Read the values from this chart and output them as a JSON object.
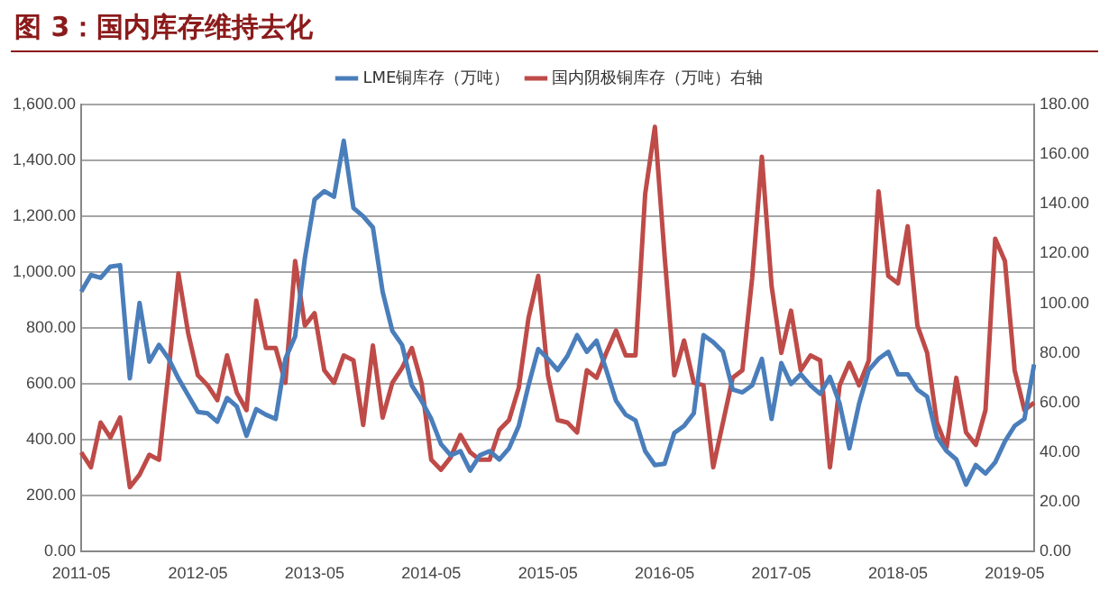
{
  "chart_data": {
    "type": "line",
    "title": "图 3：国内库存维持去化",
    "categories": [
      "2011-05",
      null,
      null,
      null,
      null,
      null,
      null,
      null,
      null,
      null,
      null,
      null,
      "2012-05",
      null,
      null,
      null,
      null,
      null,
      null,
      null,
      null,
      null,
      null,
      null,
      "2013-05",
      null,
      null,
      null,
      null,
      null,
      null,
      null,
      null,
      null,
      null,
      null,
      "2014-05",
      null,
      null,
      null,
      null,
      null,
      null,
      null,
      null,
      null,
      null,
      null,
      "2015-05",
      null,
      null,
      null,
      null,
      null,
      null,
      null,
      null,
      null,
      null,
      null,
      "2016-05",
      null,
      null,
      null,
      null,
      null,
      null,
      null,
      null,
      null,
      null,
      null,
      "2017-05",
      null,
      null,
      null,
      null,
      null,
      null,
      null,
      null,
      null,
      null,
      null,
      "2018-05",
      null,
      null,
      null,
      null,
      null,
      null,
      null,
      null,
      null,
      null,
      null,
      "2019-05",
      null,
      null
    ],
    "series": [
      {
        "name": "LME铜库存（万吨）",
        "color": "#4a7ebb",
        "values": [
          930,
          990,
          980,
          1020,
          1025,
          620,
          890,
          680,
          740,
          690,
          620,
          560,
          500,
          495,
          465,
          550,
          520,
          415,
          510,
          490,
          475,
          690,
          770,
          1050,
          1260,
          1290,
          1270,
          1470,
          1230,
          1200,
          1160,
          930,
          790,
          740,
          595,
          540,
          475,
          385,
          345,
          360,
          290,
          345,
          360,
          330,
          370,
          450,
          595,
          725,
          690,
          650,
          700,
          775,
          715,
          755,
          650,
          540,
          490,
          470,
          360,
          310,
          315,
          425,
          450,
          495,
          775,
          750,
          715,
          580,
          570,
          595,
          690,
          475,
          675,
          600,
          635,
          595,
          565,
          625,
          530,
          370,
          530,
          650,
          690,
          715,
          635,
          635,
          580,
          555,
          410,
          360,
          330,
          240,
          310,
          280,
          320,
          395,
          450,
          475,
          670
        ]
      },
      {
        "name": "国内阴极铜库存（万吨）右轴",
        "color": "#be4b48",
        "axis": "y2",
        "values": [
          40,
          34,
          52,
          46,
          54,
          26,
          31,
          39,
          37,
          73,
          112,
          88,
          71,
          67,
          61,
          79,
          64,
          57,
          101,
          82,
          82,
          68,
          117,
          91,
          96,
          73,
          68,
          79,
          77,
          51,
          83,
          54,
          68,
          74,
          82,
          68,
          37,
          33,
          38,
          47,
          40,
          37,
          37,
          49,
          53,
          66,
          94,
          111,
          71,
          53,
          52,
          48,
          73,
          70,
          80,
          89,
          79,
          79,
          144,
          171,
          119,
          71,
          85,
          68,
          67,
          34,
          52,
          70,
          73,
          110,
          159,
          107,
          80,
          97,
          73,
          79,
          77,
          34,
          67,
          76,
          67,
          77,
          145,
          111,
          108,
          131,
          91,
          80,
          52,
          42,
          70,
          48,
          43,
          57,
          126,
          117,
          73,
          57,
          60
        ]
      }
    ],
    "ylim": [
      0,
      1600
    ],
    "yticks": [
      {
        "value": 0,
        "label": "0.00"
      },
      {
        "value": 200,
        "label": "200.00"
      },
      {
        "value": 400,
        "label": "400.00"
      },
      {
        "value": 600,
        "label": "600.00"
      },
      {
        "value": 800,
        "label": "800.00"
      },
      {
        "value": 1000,
        "label": "1,000.00"
      },
      {
        "value": 1200,
        "label": "1,200.00"
      },
      {
        "value": 1400,
        "label": "1,400.00"
      },
      {
        "value": 1600,
        "label": "1,600.00"
      }
    ],
    "y2lim": [
      0,
      180
    ],
    "y2ticks": [
      {
        "value": 0,
        "label": "0.00"
      },
      {
        "value": 20,
        "label": "20.00"
      },
      {
        "value": 40,
        "label": "40.00"
      },
      {
        "value": 60,
        "label": "60.00"
      },
      {
        "value": 80,
        "label": "80.00"
      },
      {
        "value": 100,
        "label": "100.00"
      },
      {
        "value": 120,
        "label": "120.00"
      },
      {
        "value": 140,
        "label": "140.00"
      },
      {
        "value": 160,
        "label": "160.00"
      },
      {
        "value": 180,
        "label": "180.00"
      }
    ],
    "grid": "y",
    "legend": "top",
    "marker": "none",
    "line_style": "solid"
  }
}
